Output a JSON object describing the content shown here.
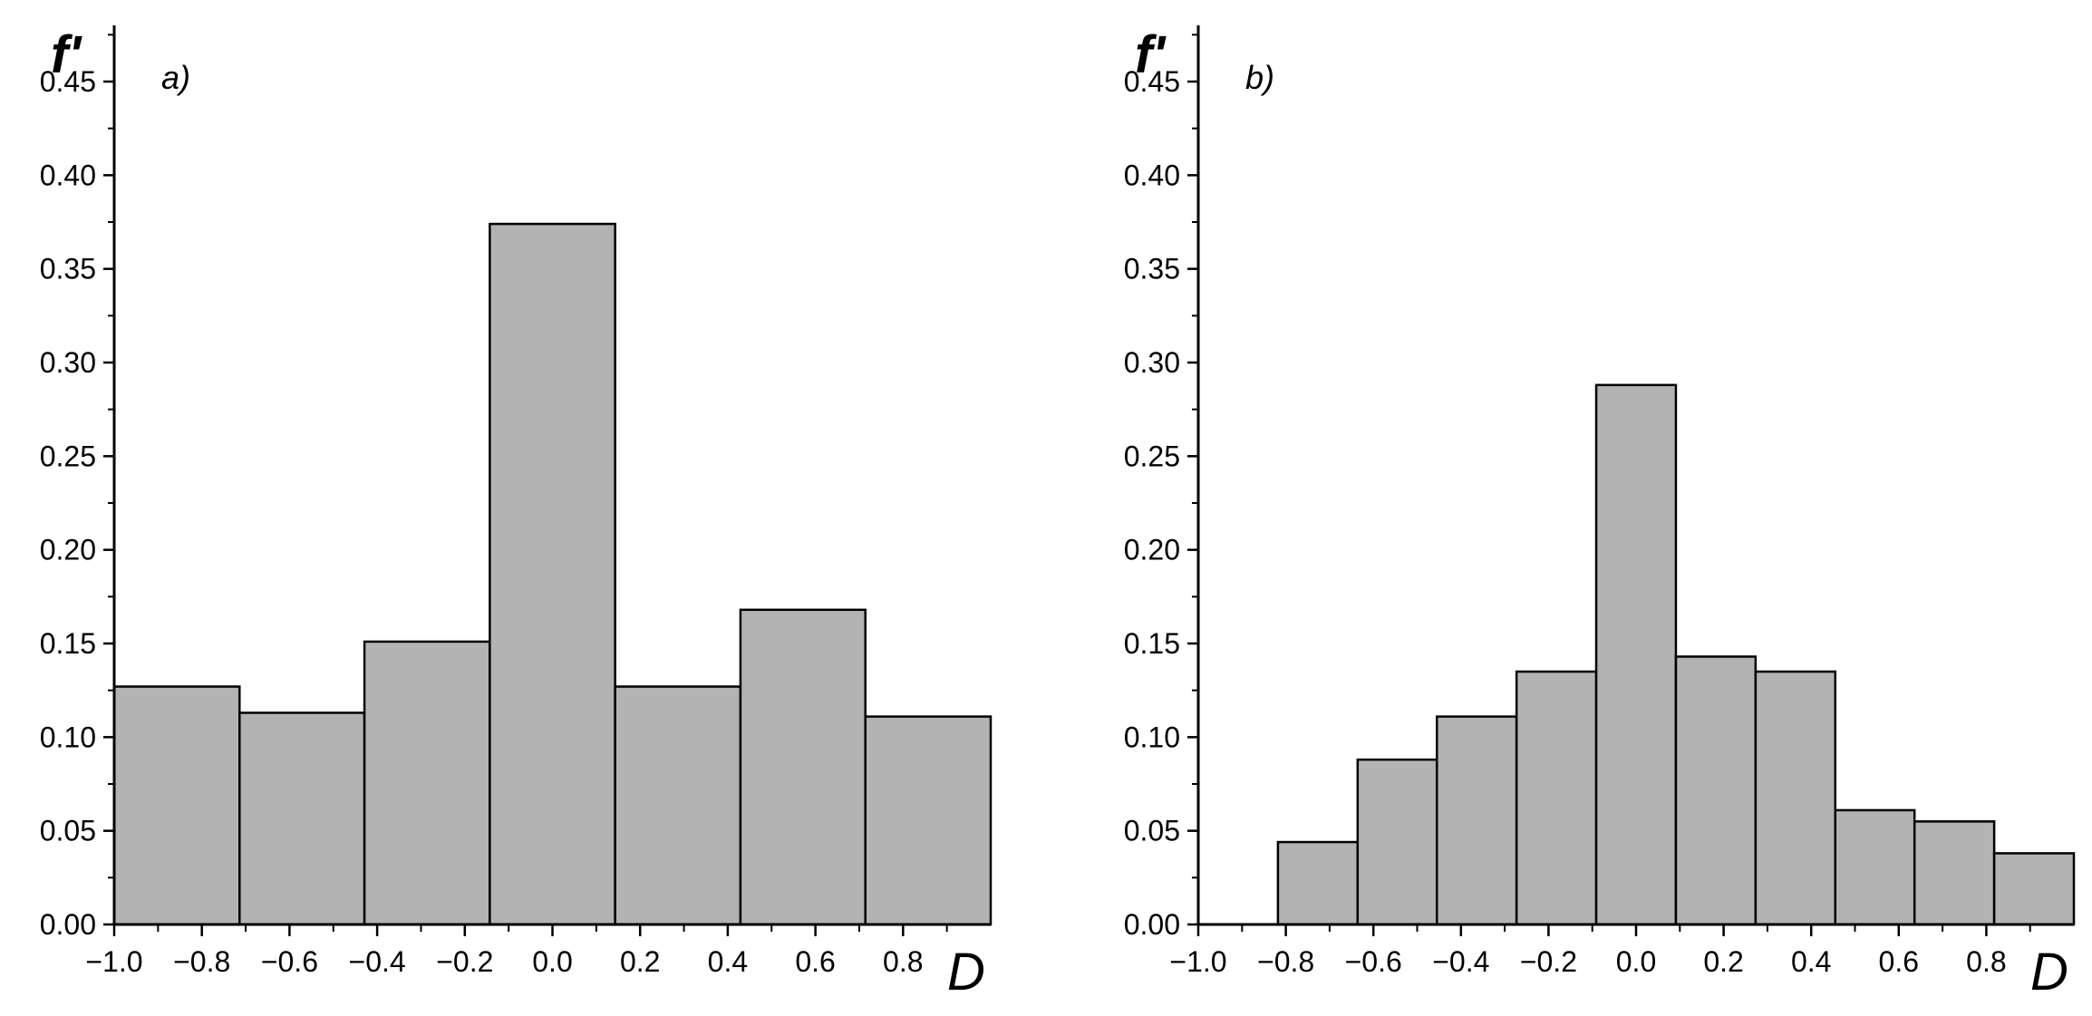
{
  "figure": {
    "background": "#ffffff",
    "bar_fill": "#b3b3b3",
    "bar_stroke": "#000000"
  },
  "chart_data": [
    {
      "type": "bar",
      "panel_label": "a)",
      "xlabel": "D",
      "ylabel": "f'",
      "xlim": [
        -1.0,
        1.0
      ],
      "ylim": [
        0.0,
        0.48
      ],
      "x_ticks": [
        "−1.0",
        "−0.8",
        "−0.6",
        "−0.4",
        "−0.2",
        "0.0",
        "0.2",
        "0.4",
        "0.6",
        "0.8"
      ],
      "x_tick_values": [
        -1.0,
        -0.8,
        -0.6,
        -0.4,
        -0.2,
        0.0,
        0.2,
        0.4,
        0.6,
        0.8
      ],
      "y_ticks": [
        "0.00",
        "0.05",
        "0.10",
        "0.15",
        "0.20",
        "0.25",
        "0.30",
        "0.35",
        "0.40",
        "0.45"
      ],
      "y_tick_values": [
        0.0,
        0.05,
        0.1,
        0.15,
        0.2,
        0.25,
        0.3,
        0.35,
        0.4,
        0.45
      ],
      "bin_edges": [
        -1.0,
        -0.714,
        -0.429,
        -0.143,
        0.143,
        0.429,
        0.714,
        1.0
      ],
      "values": [
        0.127,
        0.113,
        0.151,
        0.374,
        0.127,
        0.168,
        0.111
      ],
      "grid": false
    },
    {
      "type": "bar",
      "panel_label": "b)",
      "xlabel": "D",
      "ylabel": "f'",
      "xlim": [
        -1.0,
        1.0
      ],
      "ylim": [
        0.0,
        0.48
      ],
      "x_ticks": [
        "−1.0",
        "−0.8",
        "−0.6",
        "−0.4",
        "−0.2",
        "0.0",
        "0.2",
        "0.4",
        "0.6",
        "0.8"
      ],
      "x_tick_values": [
        -1.0,
        -0.8,
        -0.6,
        -0.4,
        -0.2,
        0.0,
        0.2,
        0.4,
        0.6,
        0.8
      ],
      "y_ticks": [
        "0.00",
        "0.05",
        "0.10",
        "0.15",
        "0.20",
        "0.25",
        "0.30",
        "0.35",
        "0.40",
        "0.45"
      ],
      "y_tick_values": [
        0.0,
        0.05,
        0.1,
        0.15,
        0.2,
        0.25,
        0.3,
        0.35,
        0.4,
        0.45
      ],
      "bin_edges": [
        -1.0,
        -0.818,
        -0.636,
        -0.455,
        -0.273,
        -0.091,
        0.091,
        0.273,
        0.455,
        0.636,
        0.818,
        1.0
      ],
      "values": [
        0.0,
        0.044,
        0.088,
        0.111,
        0.135,
        0.288,
        0.143,
        0.135,
        0.061,
        0.055,
        0.038
      ],
      "grid": false
    }
  ]
}
